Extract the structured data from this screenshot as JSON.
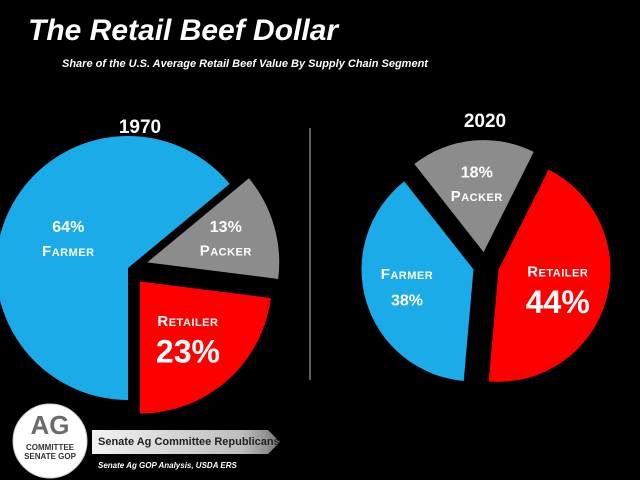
{
  "title": "The Retail Beef Dollar",
  "subtitle": "Share of the U.S. Average Retail Beef Value By Supply Chain Segment",
  "logo": {
    "main": "AG",
    "line1": "COMMITTEE",
    "line2": "SENATE GOP"
  },
  "banner": "Senate Ag Committee Republicans",
  "source": "Senate Ag GOP Analysis, USDA ERS",
  "chart_data": [
    {
      "type": "pie",
      "title": "1970",
      "categories": [
        "Farmer",
        "Packer",
        "Retailer"
      ],
      "values": [
        64,
        13,
        23
      ],
      "value_labels": [
        "64%",
        "13%",
        "23%"
      ],
      "colors": [
        "#1aabe8",
        "#8c8c8c",
        "#ff0000"
      ]
    },
    {
      "type": "pie",
      "title": "2020",
      "categories": [
        "Farmer",
        "Packer",
        "Retailer"
      ],
      "values": [
        38,
        18,
        44
      ],
      "value_labels": [
        "38%",
        "18%",
        "44%"
      ],
      "colors": [
        "#1aabe8",
        "#8c8c8c",
        "#ff0000"
      ]
    }
  ]
}
